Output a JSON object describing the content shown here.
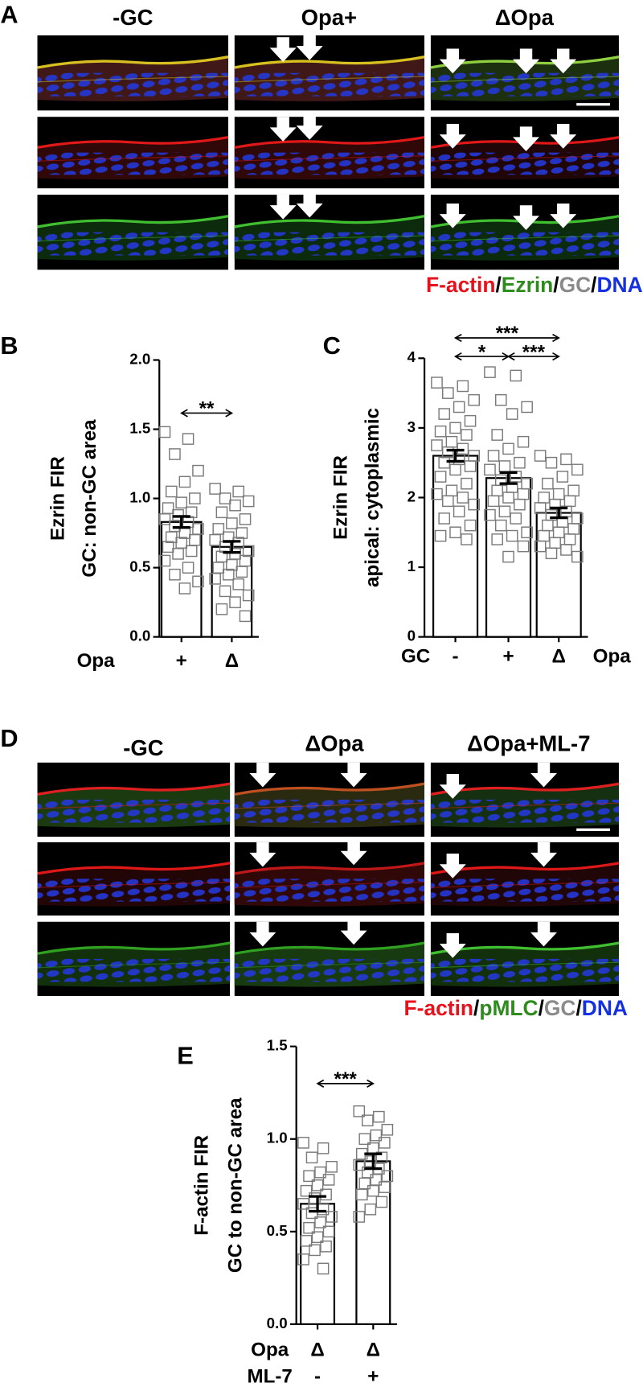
{
  "panels": [
    {
      "label": "A",
      "columns": [
        "-GC",
        "Opa+",
        "ΔOpa"
      ],
      "legend": [
        {
          "text": "F-actin",
          "color": "#e8101a"
        },
        {
          "text": "/",
          "color": "#000000"
        },
        {
          "text": "Ezrin",
          "color": "#2e8b1e"
        },
        {
          "text": "/",
          "color": "#000000"
        },
        {
          "text": "GC",
          "color": "#8a8a8a"
        },
        {
          "text": "/",
          "color": "#000000"
        },
        {
          "text": "DNA",
          "color": "#1430e0"
        }
      ]
    },
    {
      "label": "D",
      "columns": [
        "-GC",
        "ΔOpa",
        "ΔOpa+ML-7"
      ],
      "legend": [
        {
          "text": "F-actin",
          "color": "#e8101a"
        },
        {
          "text": "/",
          "color": "#000000"
        },
        {
          "text": "pMLC",
          "color": "#2e8b1e"
        },
        {
          "text": "/",
          "color": "#000000"
        },
        {
          "text": "GC",
          "color": "#8a8a8a"
        },
        {
          "text": "/",
          "color": "#000000"
        },
        {
          "text": "DNA",
          "color": "#1430e0"
        }
      ]
    }
  ],
  "chart_data": [
    {
      "type": "bar",
      "panel_label": "B",
      "y_label": [
        "Ezrin FIR",
        "GC: non-GC area"
      ],
      "ylim": [
        0,
        2
      ],
      "yticks": [
        {
          "value": 0,
          "label": "0.0"
        },
        {
          "value": 0.5,
          "label": "0.5"
        },
        {
          "value": 1,
          "label": "1.0"
        },
        {
          "value": 1.5,
          "label": "1.5"
        },
        {
          "value": 2,
          "label": "2.0"
        }
      ],
      "x_rows": [
        {
          "name": "Opa",
          "labels": [
            "+",
            "Δ"
          ]
        }
      ],
      "values": [
        0.83,
        0.65
      ],
      "errors": [
        0.04,
        0.04
      ],
      "points": [
        [
          1.48,
          1.43,
          1.32,
          1.2,
          1.12,
          1.05,
          1.0,
          0.97,
          0.93,
          0.9,
          0.88,
          0.85,
          0.83,
          0.8,
          0.78,
          0.75,
          0.72,
          0.7,
          0.68,
          0.65,
          0.62,
          0.6,
          0.55,
          0.5,
          0.45,
          0.4,
          0.35
        ],
        [
          1.07,
          1.05,
          1.0,
          0.98,
          0.95,
          0.9,
          0.85,
          0.82,
          0.78,
          0.75,
          0.72,
          0.7,
          0.68,
          0.65,
          0.62,
          0.6,
          0.58,
          0.55,
          0.52,
          0.5,
          0.47,
          0.45,
          0.42,
          0.38,
          0.33,
          0.3,
          0.25,
          0.2,
          0.15
        ]
      ],
      "comparisons": [
        {
          "groups": [
            0,
            1
          ],
          "label": "**"
        }
      ]
    },
    {
      "type": "bar",
      "panel_label": "C",
      "y_label": [
        "Ezrin FIR",
        "apical: cytoplasmic"
      ],
      "ylim": [
        0,
        4
      ],
      "yticks": [
        0,
        1,
        2,
        3,
        4
      ],
      "x_rows": [
        {
          "name": "GC",
          "labels": [
            "-",
            "+",
            "Δ"
          ]
        }
      ],
      "x_label_right": "Opa",
      "values": [
        2.6,
        2.28,
        1.78
      ],
      "errors": [
        0.08,
        0.08,
        0.07
      ],
      "points": [
        [
          3.65,
          3.6,
          3.5,
          3.4,
          3.3,
          3.2,
          3.1,
          3.0,
          2.95,
          2.9,
          2.8,
          2.75,
          2.7,
          2.65,
          2.6,
          2.55,
          2.5,
          2.45,
          2.4,
          2.3,
          2.2,
          2.1,
          2.05,
          2.0,
          1.95,
          1.9,
          1.8,
          1.7,
          1.6,
          1.5,
          1.45,
          1.4
        ],
        [
          3.8,
          3.75,
          3.4,
          3.3,
          3.2,
          2.9,
          2.8,
          2.7,
          2.6,
          2.5,
          2.45,
          2.4,
          2.3,
          2.25,
          2.2,
          2.15,
          2.1,
          2.05,
          2.0,
          1.95,
          1.9,
          1.8,
          1.75,
          1.7,
          1.6,
          1.5,
          1.45,
          1.4,
          1.3,
          1.15
        ],
        [
          2.6,
          2.55,
          2.5,
          2.4,
          2.3,
          2.2,
          2.1,
          2.05,
          2.0,
          1.95,
          1.9,
          1.85,
          1.8,
          1.75,
          1.7,
          1.65,
          1.6,
          1.55,
          1.5,
          1.45,
          1.4,
          1.35,
          1.3,
          1.25,
          1.2,
          1.15
        ]
      ],
      "comparisons": [
        {
          "groups": [
            0,
            2
          ],
          "label": "***"
        },
        {
          "groups": [
            0,
            1
          ],
          "label": "*"
        },
        {
          "groups": [
            1,
            2
          ],
          "label": "***"
        }
      ]
    },
    {
      "type": "bar",
      "panel_label": "E",
      "y_label": [
        "F-actin FIR",
        "GC to non-GC area"
      ],
      "ylim": [
        0,
        1.5
      ],
      "yticks": [
        {
          "value": 0,
          "label": "0.0"
        },
        {
          "value": 0.5,
          "label": "0.5"
        },
        {
          "value": 1,
          "label": "1.0"
        },
        {
          "value": 1.5,
          "label": "1.5"
        }
      ],
      "x_rows": [
        {
          "name": "Opa",
          "labels": [
            "Δ",
            "Δ"
          ]
        },
        {
          "name": "ML-7",
          "labels": [
            "-",
            "+"
          ]
        }
      ],
      "values": [
        0.65,
        0.88
      ],
      "errors": [
        0.04,
        0.04
      ],
      "points": [
        [
          0.98,
          0.95,
          0.9,
          0.85,
          0.82,
          0.8,
          0.78,
          0.75,
          0.72,
          0.7,
          0.68,
          0.65,
          0.62,
          0.6,
          0.58,
          0.55,
          0.52,
          0.5,
          0.47,
          0.45,
          0.42,
          0.4,
          0.35,
          0.3
        ],
        [
          1.15,
          1.12,
          1.1,
          1.05,
          1.02,
          1.0,
          0.98,
          0.95,
          0.92,
          0.9,
          0.88,
          0.86,
          0.84,
          0.82,
          0.8,
          0.78,
          0.76,
          0.74,
          0.72,
          0.7,
          0.66,
          0.62,
          0.58
        ]
      ],
      "comparisons": [
        {
          "groups": [
            0,
            1
          ],
          "label": "***"
        }
      ]
    }
  ]
}
